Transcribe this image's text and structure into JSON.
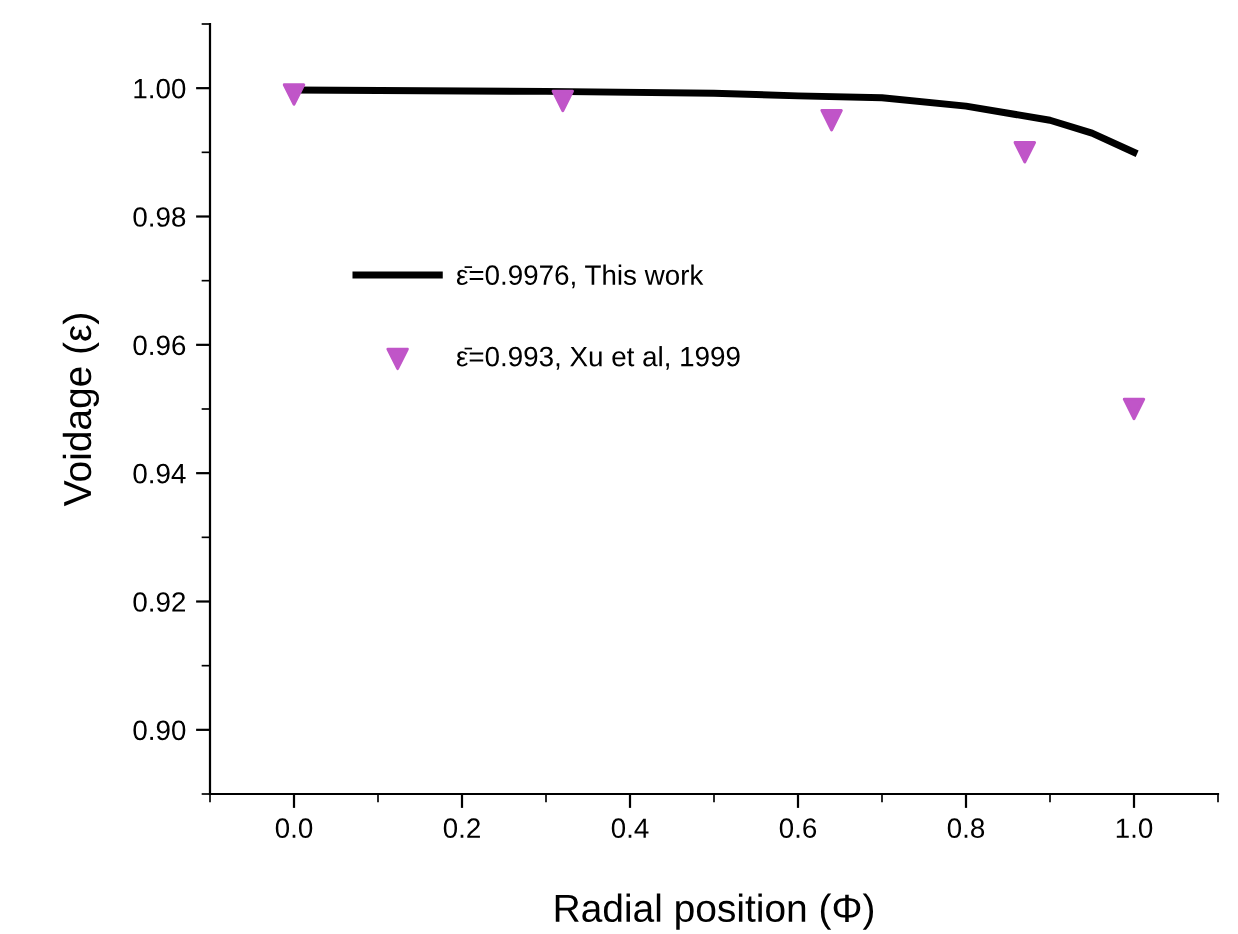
{
  "chart_data": {
    "type": "line",
    "xlabel": "Radial position (Φ)",
    "ylabel": "Voidage (ε)",
    "xlim": [
      -0.1,
      1.1
    ],
    "xticks": [
      {
        "value": 0.0,
        "label": "0.0"
      },
      {
        "value": 0.2,
        "label": "0.2"
      },
      {
        "value": 0.4,
        "label": "0.4"
      },
      {
        "value": 0.6,
        "label": "0.6"
      },
      {
        "value": 0.8,
        "label": "0.8"
      },
      {
        "value": 1.0,
        "label": "1.0"
      }
    ],
    "ylim": [
      0.89,
      1.01
    ],
    "yticks": [
      {
        "value": 0.9,
        "label": "0.90"
      },
      {
        "value": 0.92,
        "label": "0.92"
      },
      {
        "value": 0.94,
        "label": "0.94"
      },
      {
        "value": 0.96,
        "label": "0.96"
      },
      {
        "value": 0.98,
        "label": "0.98"
      },
      {
        "value": 1.0,
        "label": "1.00"
      }
    ],
    "grid": false,
    "legend": "center",
    "series": [
      {
        "name": "ε̄=0.9976, This work",
        "color": "#000000",
        "marker": "none",
        "line_style": "solid",
        "x": [
          0,
          0.3,
          0.5,
          0.6,
          0.7,
          0.8,
          0.9,
          0.95,
          1.0
        ],
        "values": [
          0.9997,
          0.9995,
          0.9992,
          0.9988,
          0.9985,
          0.9972,
          0.995,
          0.993,
          0.99
        ]
      },
      {
        "name": "ε̄=0.993, Xu et al, 1999",
        "type": "scatter",
        "color": "#c055c8",
        "marker": "triangle",
        "x": [
          0,
          0.32,
          0.64,
          0.87,
          1.0
        ],
        "values": [
          0.999,
          0.998,
          0.995,
          0.99,
          0.95
        ]
      }
    ]
  }
}
